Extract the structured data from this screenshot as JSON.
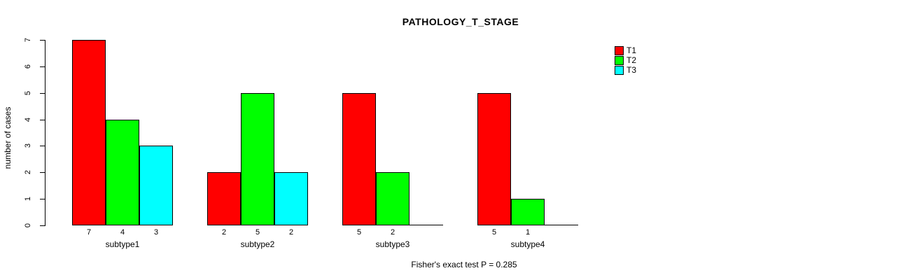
{
  "chart_data": {
    "type": "bar",
    "title": "PATHOLOGY_T_STAGE",
    "ylabel": "number of cases",
    "xlabel": "",
    "categories": [
      "subtype1",
      "subtype2",
      "subtype3",
      "subtype4"
    ],
    "series": [
      {
        "name": "T1",
        "color": "#ff0000",
        "values": [
          7,
          2,
          5,
          5
        ]
      },
      {
        "name": "T2",
        "color": "#00ff00",
        "values": [
          4,
          5,
          2,
          1
        ]
      },
      {
        "name": "T3",
        "color": "#00ffff",
        "values": [
          3,
          2,
          0,
          0
        ]
      }
    ],
    "bar_value_labels": [
      [
        "7",
        "2",
        "5",
        "5"
      ],
      [
        "4",
        "5",
        "2",
        "1"
      ],
      [
        "3",
        "2",
        "",
        ""
      ]
    ],
    "ylim": [
      0,
      7
    ],
    "yticks": [
      0,
      1,
      2,
      3,
      4,
      5,
      6,
      7
    ],
    "grid": false,
    "legend": {
      "position": "top-right",
      "entries": [
        "T1",
        "T2",
        "T3"
      ]
    },
    "footnote": "Fisher's exact test P = 0.285",
    "background_color": "#ffffff",
    "axis_color": "#000000"
  }
}
